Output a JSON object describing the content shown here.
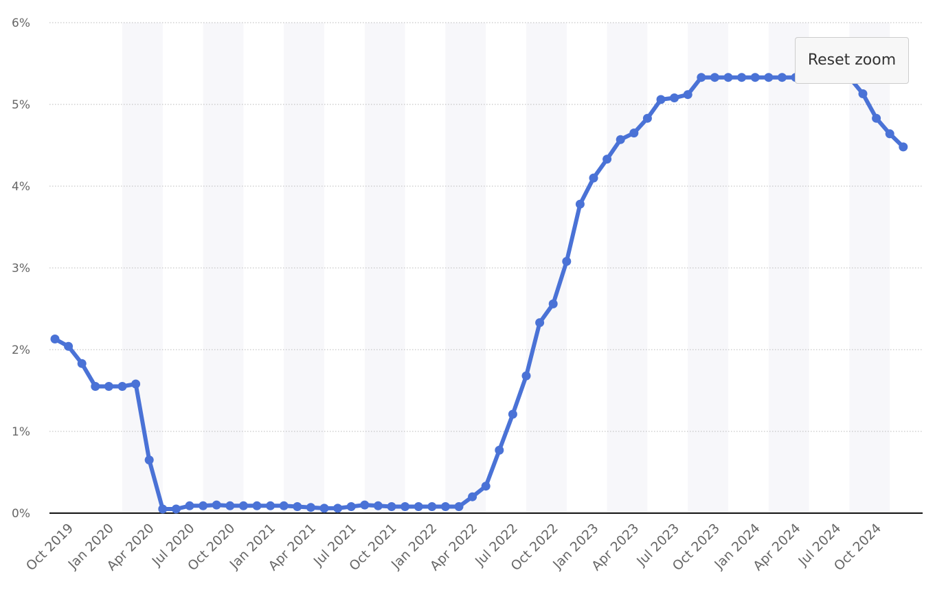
{
  "toolbar": {
    "reset_zoom_label": "Reset zoom"
  },
  "colors": {
    "series": "#4a72d6",
    "axis": "#111111",
    "grid": "#b8b8b8",
    "band": "#f7f7fa"
  },
  "chart_data": {
    "type": "line",
    "title": "",
    "xlabel": "",
    "ylabel": "",
    "ylim": [
      0,
      6
    ],
    "y_ticks": [
      "0%",
      "1%",
      "2%",
      "3%",
      "4%",
      "5%",
      "6%"
    ],
    "grid": "horizontal dotted",
    "legend": "none",
    "x_tick_labels": [
      "Oct 2019",
      "Jan 2020",
      "Apr 2020",
      "Jul 2020",
      "Oct 2020",
      "Jan 2021",
      "Apr 2021",
      "Jul 2021",
      "Oct 2021",
      "Jan 2022",
      "Apr 2022",
      "Jul 2022",
      "Oct 2022",
      "Jan 2023",
      "Apr 2023",
      "Jul 2023",
      "Oct 2023",
      "Jan 2024",
      "Apr 2024",
      "Jul 2024",
      "Oct 2024"
    ],
    "x": [
      "Sep 2019",
      "Oct 2019",
      "Nov 2019",
      "Dec 2019",
      "Jan 2020",
      "Feb 2020",
      "Mar 2020",
      "Apr 2020",
      "May 2020",
      "Jun 2020",
      "Jul 2020",
      "Aug 2020",
      "Sep 2020",
      "Oct 2020",
      "Nov 2020",
      "Dec 2020",
      "Jan 2021",
      "Feb 2021",
      "Mar 2021",
      "Apr 2021",
      "May 2021",
      "Jun 2021",
      "Jul 2021",
      "Aug 2021",
      "Sep 2021",
      "Oct 2021",
      "Nov 2021",
      "Dec 2021",
      "Jan 2022",
      "Feb 2022",
      "Mar 2022",
      "Apr 2022",
      "May 2022",
      "Jun 2022",
      "Jul 2022",
      "Aug 2022",
      "Sep 2022",
      "Oct 2022",
      "Nov 2022",
      "Dec 2022",
      "Jan 2023",
      "Feb 2023",
      "Mar 2023",
      "Apr 2023",
      "May 2023",
      "Jun 2023",
      "Jul 2023",
      "Aug 2023",
      "Sep 2023",
      "Oct 2023",
      "Nov 2023",
      "Dec 2023",
      "Jan 2024",
      "Feb 2024",
      "Mar 2024",
      "Apr 2024",
      "May 2024",
      "Jun 2024",
      "Jul 2024",
      "Aug 2024",
      "Sep 2024",
      "Oct 2024",
      "Nov 2024",
      "Dec 2024"
    ],
    "series": [
      {
        "values": [
          2.13,
          2.04,
          1.83,
          1.55,
          1.55,
          1.55,
          1.58,
          0.65,
          0.05,
          0.05,
          0.09,
          0.09,
          0.1,
          0.09,
          0.09,
          0.09,
          0.09,
          0.09,
          0.08,
          0.07,
          0.06,
          0.06,
          0.08,
          0.1,
          0.09,
          0.08,
          0.08,
          0.08,
          0.08,
          0.08,
          0.08,
          0.2,
          0.33,
          0.77,
          1.21,
          1.68,
          2.33,
          2.56,
          3.08,
          3.78,
          4.1,
          4.33,
          4.57,
          4.65,
          4.83,
          5.06,
          5.08,
          5.12,
          5.33,
          5.33,
          5.33,
          5.33,
          5.33,
          5.33,
          5.33,
          5.33,
          5.33,
          5.33,
          5.33,
          5.33,
          5.13,
          4.83,
          4.64,
          4.48
        ]
      }
    ]
  }
}
